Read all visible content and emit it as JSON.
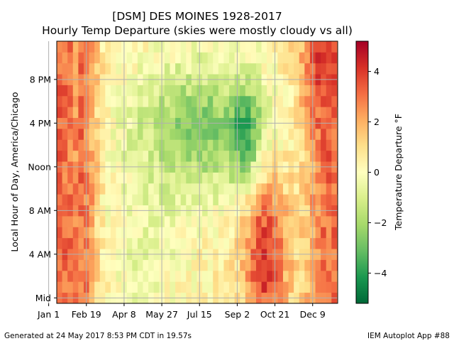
{
  "chart_data": {
    "type": "heatmap",
    "title": "[DSM] DES MOINES 1928-2017",
    "subtitle": "Hourly Temp Departure (skies were mostly cloudy vs all)",
    "xlabel": "",
    "ylabel": "Local Hour of Day, America/Chicago",
    "colorbar_label": "Temperature Departure °F",
    "x_range": [
      "Jan 1",
      "Dec 31"
    ],
    "y_range": [
      0,
      24
    ],
    "x_tick_labels": [
      "Jan 1",
      "Feb 19",
      "Apr 8",
      "May 27",
      "Jul 15",
      "Sep 2",
      "Oct 21",
      "Dec 9"
    ],
    "x_tick_days": [
      1,
      50,
      99,
      148,
      197,
      246,
      295,
      344
    ],
    "y_tick_labels": [
      "Mid",
      "4 AM",
      "8 AM",
      "Noon",
      "4 PM",
      "8 PM"
    ],
    "y_tick_hours": [
      0,
      4,
      8,
      12,
      16,
      20
    ],
    "colorbar_ticks": [
      -4,
      -2,
      0,
      2,
      4
    ],
    "colorbar_range": [
      -5.2,
      5.2
    ],
    "colormap": "RdYlGn_r",
    "bin_days": 7,
    "hours": 24,
    "grid": true,
    "series_notes": [
      {
        "period": "winter (Jan–Feb, Dec)",
        "hours": "all",
        "departure_approx": 3.5
      },
      {
        "period": "summer (May–Sep)",
        "hours": "10 AM–8 PM",
        "departure_approx": -2.0
      },
      {
        "period": "early autumn (Sep–Oct)",
        "hours": "1 AM–8 AM",
        "departure_approx": 4.0
      },
      {
        "period": "early September",
        "hours": "2 PM–5 PM",
        "departure_approx": -4.5
      }
    ]
  },
  "footer": {
    "left": "Generated at 24 May 2017 8:53 PM CDT in 19.57s",
    "right": "IEM Autoplot App #88"
  },
  "colors": {
    "grid": "#b0b0b0",
    "hot": "#a50026",
    "neutral": "#ffffbf",
    "cool": "#006837"
  }
}
